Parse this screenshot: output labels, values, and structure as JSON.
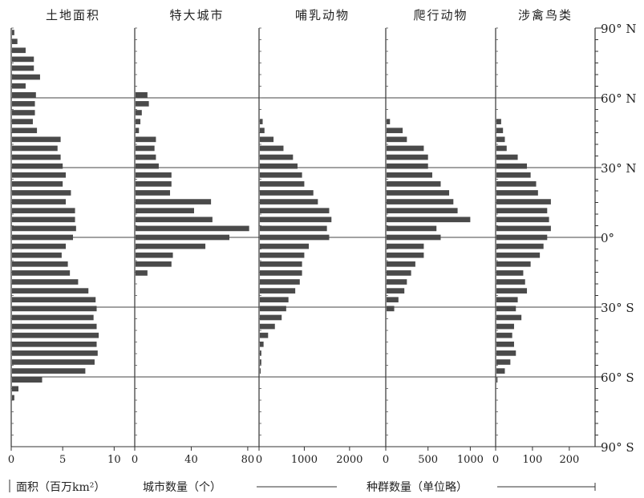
{
  "chart_data": [
    {
      "type": "bar",
      "title": "土地面积",
      "xlim": [
        0,
        12
      ],
      "xticks": [
        "0",
        "5",
        "10"
      ],
      "xtick_values": [
        0,
        5,
        10
      ],
      "values": [
        0.3,
        0.6,
        1.4,
        2.2,
        2.2,
        2.8,
        1.4,
        2.4,
        2.3,
        2.3,
        2.1,
        2.5,
        4.8,
        4.5,
        4.8,
        5.0,
        5.3,
        5.0,
        5.8,
        5.3,
        6.2,
        6.2,
        6.3,
        6.0,
        5.3,
        4.9,
        5.5,
        5.7,
        6.5,
        7.5,
        8.2,
        8.3,
        8.0,
        8.3,
        8.5,
        8.3,
        8.4,
        8.1,
        7.2,
        3.0,
        0.7,
        0.3,
        0,
        0,
        0,
        0,
        0
      ]
    },
    {
      "type": "bar",
      "title": "特大城市",
      "xlim": [
        0,
        88
      ],
      "xticks": [
        "0",
        "40",
        "80"
      ],
      "xtick_values": [
        0,
        40,
        80
      ],
      "values": [
        0,
        0,
        0,
        0,
        0,
        0,
        0,
        9,
        10,
        5,
        4,
        3,
        15,
        14,
        15,
        17,
        26,
        26,
        25,
        54,
        42,
        55,
        81,
        67,
        50,
        27,
        26,
        9,
        0,
        0,
        0,
        0,
        0,
        0,
        0,
        0,
        0,
        0,
        0,
        0,
        0,
        0,
        0,
        0,
        0,
        0,
        0
      ]
    },
    {
      "type": "bar",
      "title": "哺乳动物",
      "xlim": [
        0,
        2800
      ],
      "xticks": [
        "0",
        "1000",
        "2000"
      ],
      "xtick_values": [
        0,
        1000,
        2000
      ],
      "values": [
        0,
        0,
        0,
        0,
        0,
        0,
        0,
        0,
        0,
        0,
        80,
        120,
        320,
        540,
        750,
        850,
        950,
        1000,
        1200,
        1300,
        1550,
        1600,
        1500,
        1550,
        1100,
        1000,
        950,
        950,
        900,
        800,
        650,
        600,
        500,
        350,
        200,
        100,
        50,
        50,
        30,
        0,
        0,
        0,
        0,
        0,
        0,
        0,
        0
      ]
    },
    {
      "type": "bar",
      "title": "爬行动物",
      "xlim": [
        0,
        1300
      ],
      "xticks": [
        "0",
        "500",
        "1000"
      ],
      "xtick_values": [
        0,
        500,
        1000
      ],
      "values": [
        0,
        0,
        0,
        0,
        0,
        0,
        0,
        0,
        0,
        0,
        50,
        200,
        250,
        450,
        500,
        500,
        550,
        650,
        750,
        800,
        850,
        1000,
        600,
        650,
        450,
        450,
        350,
        300,
        250,
        220,
        150,
        100,
        0,
        0,
        0,
        0,
        0,
        0,
        0,
        0,
        0,
        0,
        0,
        0,
        0,
        0,
        0
      ]
    },
    {
      "type": "bar",
      "title": "涉禽鸟类",
      "xlim": [
        0,
        270
      ],
      "xticks": [
        "0",
        "100",
        "200"
      ],
      "xtick_values": [
        0,
        100,
        200
      ],
      "values": [
        0,
        0,
        0,
        0,
        0,
        0,
        0,
        0,
        0,
        0,
        15,
        20,
        25,
        30,
        60,
        85,
        95,
        110,
        115,
        150,
        140,
        145,
        150,
        140,
        130,
        120,
        95,
        75,
        80,
        85,
        60,
        55,
        70,
        50,
        45,
        50,
        55,
        40,
        25,
        5,
        0,
        0,
        0,
        0,
        0,
        0,
        0
      ]
    }
  ],
  "y_labels": [
    "90° N",
    "60° N",
    "30° N",
    "0°",
    "30° S",
    "60° S",
    "90° S"
  ],
  "bottom": {
    "area": "面积（百万km²）",
    "cities": "城市数量（个）",
    "species": "种群数量（单位略）"
  }
}
